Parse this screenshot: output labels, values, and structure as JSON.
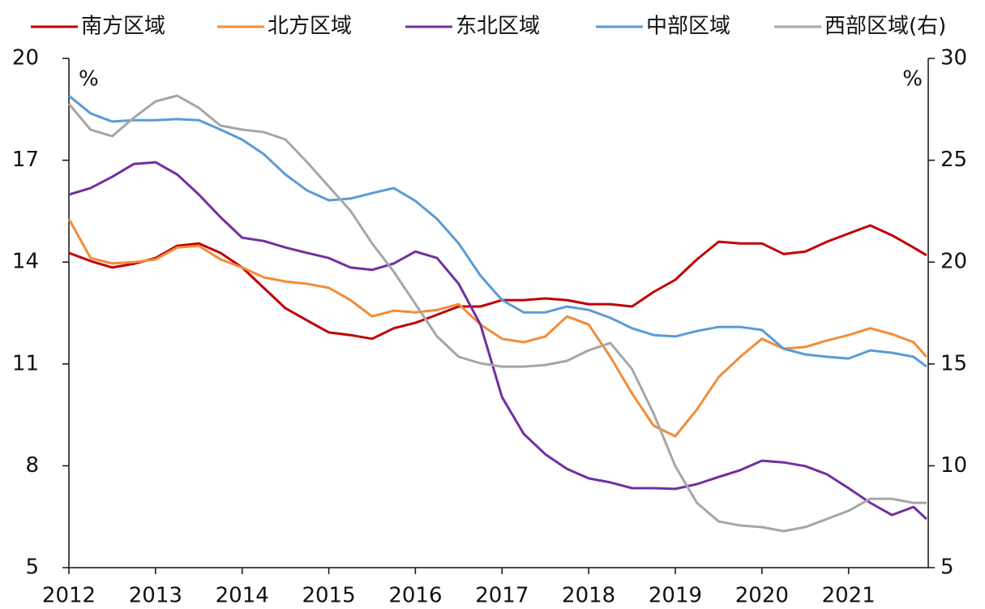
{
  "chart_data": {
    "type": "line",
    "y_label": "%",
    "y2_label": "%",
    "x": [
      2012.0,
      2012.25,
      2012.5,
      2012.75,
      2013.0,
      2013.25,
      2013.5,
      2013.75,
      2014.0,
      2014.25,
      2014.5,
      2014.75,
      2015.0,
      2015.25,
      2015.5,
      2015.75,
      2016.0,
      2016.25,
      2016.5,
      2016.75,
      2017.0,
      2017.25,
      2017.5,
      2017.75,
      2018.0,
      2018.25,
      2018.5,
      2018.75,
      2019.0,
      2019.25,
      2019.5,
      2019.75,
      2020.0,
      2020.25,
      2020.5,
      2020.75,
      2021.0,
      2021.25,
      2021.5,
      2021.75,
      2021.9
    ],
    "xlim": [
      2012,
      2021.92
    ],
    "xticks": [
      2012,
      2013,
      2014,
      2015,
      2016,
      2017,
      2018,
      2019,
      2020,
      2021
    ],
    "ylim": [
      5,
      20
    ],
    "yticks": [
      5,
      8,
      11,
      14,
      17,
      20
    ],
    "y2lim": [
      5,
      30
    ],
    "y2ticks": [
      5,
      10,
      15,
      20,
      25,
      30
    ],
    "series": [
      {
        "name": "南方区域",
        "color": "#c00000",
        "values": [
          14.27,
          14.03,
          13.84,
          13.95,
          14.12,
          14.48,
          14.55,
          14.27,
          13.84,
          13.24,
          12.64,
          12.28,
          11.93,
          11.85,
          11.74,
          12.05,
          12.21,
          12.45,
          12.69,
          12.69,
          12.88,
          12.88,
          12.93,
          12.88,
          12.76,
          12.76,
          12.69,
          13.12,
          13.48,
          14.08,
          14.6,
          14.55,
          14.55,
          14.24,
          14.31,
          14.6,
          14.84,
          15.08,
          14.79,
          14.43,
          14.2
        ]
      },
      {
        "name": "北方区域",
        "color": "#f28c38",
        "values": [
          15.27,
          14.12,
          13.96,
          14.0,
          14.08,
          14.43,
          14.48,
          14.08,
          13.84,
          13.55,
          13.43,
          13.36,
          13.24,
          12.88,
          12.4,
          12.57,
          12.52,
          12.59,
          12.76,
          12.16,
          11.74,
          11.64,
          11.81,
          12.4,
          12.16,
          11.21,
          10.13,
          9.18,
          8.87,
          9.66,
          10.61,
          11.21,
          11.74,
          11.45,
          11.5,
          11.69,
          11.85,
          12.05,
          11.88,
          11.64,
          11.21
        ]
      },
      {
        "name": "东北区域",
        "color": "#7030a0",
        "values": [
          15.99,
          16.18,
          16.51,
          16.89,
          16.94,
          16.58,
          15.99,
          15.32,
          14.72,
          14.62,
          14.43,
          14.27,
          14.12,
          13.84,
          13.77,
          13.96,
          14.31,
          14.12,
          13.36,
          12.16,
          10.02,
          8.94,
          8.34,
          7.91,
          7.63,
          7.51,
          7.34,
          7.34,
          7.32,
          7.46,
          7.67,
          7.87,
          8.15,
          8.1,
          7.99,
          7.75,
          7.34,
          6.91,
          6.55,
          6.79,
          6.43
        ]
      },
      {
        "name": "中部区域",
        "color": "#5b9bd5",
        "values": [
          18.9,
          18.38,
          18.14,
          18.18,
          18.18,
          18.21,
          18.18,
          17.9,
          17.61,
          17.18,
          16.58,
          16.11,
          15.82,
          15.87,
          16.03,
          16.18,
          15.8,
          15.27,
          14.55,
          13.6,
          12.88,
          12.52,
          12.52,
          12.69,
          12.59,
          12.36,
          12.05,
          11.85,
          11.81,
          11.97,
          12.09,
          12.09,
          12.0,
          11.45,
          11.28,
          11.21,
          11.16,
          11.4,
          11.33,
          11.21,
          10.92
        ]
      },
      {
        "name": "西部区域(右)",
        "color": "#a6a6a6",
        "axis": "y2",
        "values": [
          27.77,
          26.5,
          26.18,
          27.09,
          27.89,
          28.17,
          27.57,
          26.7,
          26.5,
          26.38,
          26.02,
          24.9,
          23.71,
          22.52,
          20.92,
          19.53,
          17.94,
          16.35,
          15.35,
          15.03,
          14.87,
          14.87,
          14.95,
          15.15,
          15.67,
          16.03,
          14.75,
          12.56,
          9.98,
          8.18,
          7.27,
          7.07,
          6.99,
          6.79,
          6.99,
          7.39,
          7.79,
          8.38,
          8.38,
          8.18,
          8.18
        ]
      }
    ]
  }
}
